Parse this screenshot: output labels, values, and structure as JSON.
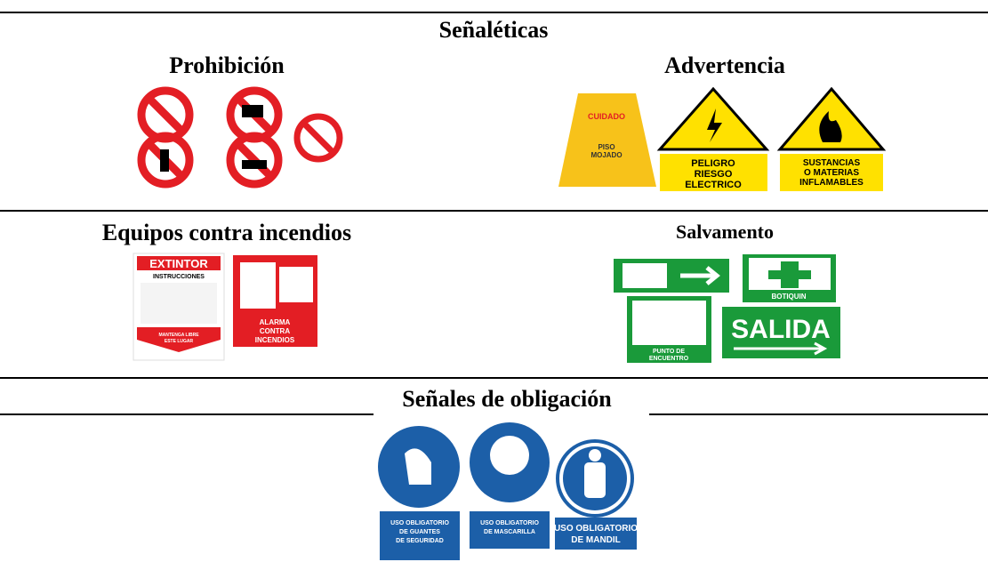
{
  "table": {
    "title": "Señaléticas",
    "sections": [
      {
        "label": "Prohibición",
        "signs": []
      },
      {
        "label": "Advertencia",
        "signs": [
          [
            "CUIDADO"
          ],
          [
            "PISO",
            "MOJADO"
          ],
          [
            "PELIGRO",
            "RIESGO",
            "ELECTRICO"
          ],
          [
            "SUSTANCIAS",
            "O MATERIAS",
            "INFLAMABLES"
          ]
        ]
      },
      {
        "label": "Equipos contra incendios",
        "signs": [
          [
            "EXTINTOR"
          ],
          [
            "INSTRUCCIONES"
          ],
          [
            "MANTENGA LIBRE",
            "ESTE LUGAR"
          ],
          [
            "ALARMA",
            "CONTRA",
            "INCENDIOS"
          ]
        ]
      },
      {
        "label": "Salvamento",
        "signs": [
          [
            "BOTIQUIN"
          ],
          [
            "SALIDA"
          ],
          [
            "PUNTO DE",
            "ENCUENTRO"
          ]
        ]
      },
      {
        "label": "Señales de obligación",
        "signs": [
          [
            "USO OBLIGATORIO",
            "DE GUANTES",
            "DE SEGURIDAD"
          ],
          [
            "USO OBLIGATORIO",
            "DE MASCARILLA"
          ],
          [
            "USO OBLIGATORIO",
            "DE MANDIL"
          ]
        ]
      }
    ]
  }
}
